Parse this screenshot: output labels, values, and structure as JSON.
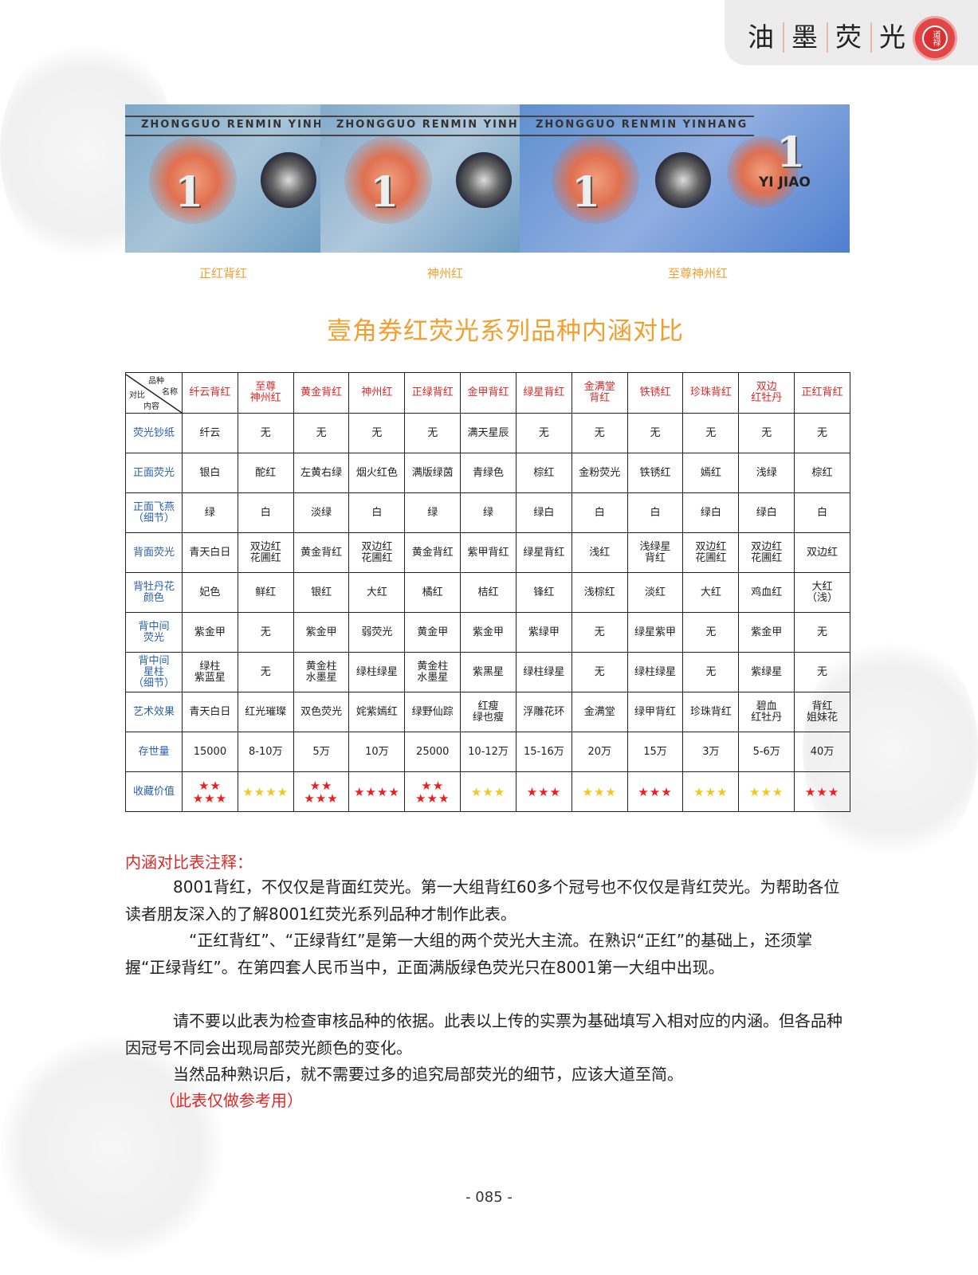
{
  "header": {
    "title_chars": [
      "油",
      "墨",
      "荧",
      "光"
    ],
    "seal_text": "道禄"
  },
  "banknotes": [
    {
      "band_text": "ZHONGGUO RENMIN YINH",
      "caption": "正红背红"
    },
    {
      "band_text": "ZHONGGUO RENMIN YINH",
      "caption": "神州红"
    },
    {
      "band_text": "ZHONGGUO RENMIN YINHANG",
      "caption": "至尊神州红",
      "denomination_text": "YI JIAO"
    }
  ],
  "page_title": "壹角券红荧光系列品种内涵对比",
  "table": {
    "corner": {
      "top": "品种",
      "right": "名称",
      "left": "对比",
      "bottom": "内容"
    },
    "columns": [
      "纤云背红",
      "至尊\n神州红",
      "黄金背红",
      "神州红",
      "正绿背红",
      "金甲背红",
      "绿星背红",
      "金满堂\n背红",
      "铁锈红",
      "珍珠背红",
      "双边\n红牡丹",
      "正红背红"
    ],
    "rows": [
      {
        "label": "荧光钞纸",
        "values": [
          "纤云",
          "无",
          "无",
          "无",
          "无",
          "满天星辰",
          "无",
          "无",
          "无",
          "无",
          "无",
          "无"
        ]
      },
      {
        "label": "正面荧光",
        "values": [
          "银白",
          "酡红",
          "左黄右绿",
          "烟火红色",
          "满版绿茵",
          "青绿色",
          "棕红",
          "金粉荧光",
          "铁锈红",
          "嫣红",
          "浅绿",
          "棕红"
        ]
      },
      {
        "label": "正面飞燕\n（细节）",
        "values": [
          "绿",
          "白",
          "淡绿",
          "白",
          "绿",
          "绿",
          "绿白",
          "白",
          "白",
          "绿白",
          "绿白",
          "白"
        ]
      },
      {
        "label": "背面荧光",
        "values": [
          "青天白日",
          "双边红\n花圃红",
          "黄金背红",
          "双边红\n花圃红",
          "黄金背红",
          "紫甲背红",
          "绿星背红",
          "浅红",
          "浅绿星\n背红",
          "双边红\n花圃红",
          "双边红\n花圃红",
          "双边红"
        ]
      },
      {
        "label": "背牡丹花\n颜色",
        "values": [
          "妃色",
          "鲜红",
          "银红",
          "大红",
          "橘红",
          "桔红",
          "锋红",
          "浅棕红",
          "淡红",
          "大红",
          "鸡血红",
          "大红\n（浅）"
        ]
      },
      {
        "label": "背中间\n荧光",
        "values": [
          "紫金甲",
          "无",
          "紫金甲",
          "弱荧光",
          "黄金甲",
          "紫金甲",
          "紫绿甲",
          "无",
          "绿星紫甲",
          "无",
          "紫金甲",
          "无"
        ]
      },
      {
        "label": "背中间\n星柱\n（细节）",
        "values": [
          "绿柱\n紫蓝星",
          "无",
          "黄金柱\n水墨星",
          "绿柱绿星",
          "黄金柱\n水墨星",
          "紫黑星",
          "绿柱绿星",
          "无",
          "绿柱绿星",
          "无",
          "紫绿星",
          "无"
        ]
      },
      {
        "label": "艺术效果",
        "values": [
          "青天白日",
          "红光璀璨",
          "双色荧光",
          "姹紫嫣红",
          "绿野仙踪",
          "红瘦\n绿也瘦",
          "浮雕花环",
          "金满堂",
          "绿甲背红",
          "珍珠背红",
          "碧血\n红牡丹",
          "背红\n姐妹花"
        ]
      },
      {
        "label": "存世量",
        "values": [
          "15000",
          "8-10万",
          "5万",
          "10万",
          "25000",
          "10-12万",
          "15-16万",
          "20万",
          "15万",
          "3万",
          "5-6万",
          "40万"
        ]
      }
    ],
    "rating_label": "收藏价值",
    "ratings": [
      {
        "stars": 5,
        "color": "#e82020"
      },
      {
        "stars": 4,
        "color": "#f0c820"
      },
      {
        "stars": 5,
        "color": "#e82020"
      },
      {
        "stars": 4,
        "color": "#e82020"
      },
      {
        "stars": 5,
        "color": "#e82020"
      },
      {
        "stars": 3,
        "color": "#f0c820"
      },
      {
        "stars": 3,
        "color": "#e82020"
      },
      {
        "stars": 3,
        "color": "#f0c820"
      },
      {
        "stars": 3,
        "color": "#e82020"
      },
      {
        "stars": 3,
        "color": "#f0c820"
      },
      {
        "stars": 3,
        "color": "#f0c820"
      },
      {
        "stars": 3,
        "color": "#e82020"
      }
    ]
  },
  "notes": {
    "title": "内涵对比表注释：",
    "paragraphs": [
      "　　　8001背红，不仅仅是背面红荧光。第一大组背红60多个冠号也不仅仅是背红荧光。为帮助各位读者朋友深入的了解8001红荧光系列品种才制作此表。",
      "　　　　“正红背红”、“正绿背红”是第一大组的两个荧光大主流。在熟识“正红”的基础上，还须掌握“正绿背红”。在第四套人民币当中，正面满版绿色荧光只在8001第一大组中出现。",
      "　　　请不要以此表为检查审核品种的依据。此表以上传的实票为基础填写入相对应的内涵。但各品种因冠号不同会出现局部荧光颜色的变化。",
      "　　　当然品种熟识后，就不需要过多的追究局部荧光的细节，应该大道至简。"
    ],
    "reference": "（此表仅做参考用）"
  },
  "page_number": "- 085 -"
}
